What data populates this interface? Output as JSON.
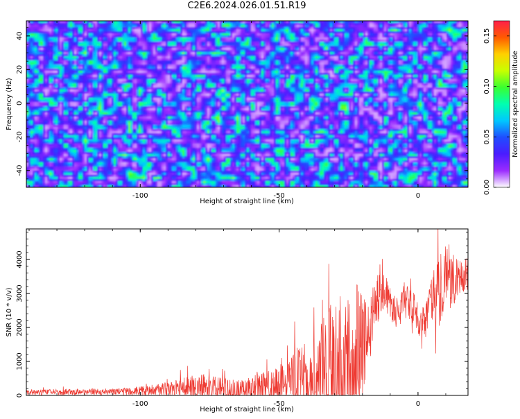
{
  "title": "C2E6.2024.026.01.51.R19",
  "chart_data": [
    {
      "type": "heatmap",
      "title": "C2E6.2024.026.01.51.R19",
      "xlabel": "Height of straight line (km)",
      "ylabel": "Frequency (Hz)",
      "xlim": [
        -141,
        18
      ],
      "ylim": [
        -50,
        49
      ],
      "x_ticks": [
        -100,
        -50,
        0
      ],
      "x_tick_labels": [
        "-100",
        "-50",
        "0"
      ],
      "y_ticks": [
        -40,
        -20,
        0,
        20,
        40
      ],
      "y_tick_labels": [
        "-40",
        "-20",
        "0",
        "20",
        "40"
      ],
      "colorbar": {
        "label": "Normalized spectral amplitude",
        "range": [
          0,
          0.165
        ],
        "ticks": [
          0.0,
          0.05,
          0.1,
          0.15
        ],
        "tick_labels": [
          "0.00",
          "0.05",
          "0.10",
          "0.15"
        ],
        "colormap": [
          "#ffffff",
          "#9b2cff",
          "#4a1cff",
          "#1f4dff",
          "#00c8ff",
          "#00ffb0",
          "#3aff30",
          "#c8ff00",
          "#ffd000",
          "#ff5a00",
          "#ff1f4a"
        ]
      },
      "description_values": "noise-like speckle field, amplitudes mostly 0.01-0.06 with scattered maxima near 0.09-0.12"
    },
    {
      "type": "line",
      "xlabel": "Height of straight line (km)",
      "ylabel": "SNR (10 * v/v)",
      "xlim": [
        -141,
        18
      ],
      "ylim": [
        0,
        4900
      ],
      "x_ticks": [
        -100,
        -50,
        0
      ],
      "x_tick_labels": [
        "-100",
        "-50",
        "0"
      ],
      "y_ticks": [
        0,
        1000,
        2000,
        3000,
        4000
      ],
      "y_tick_labels": [
        "0",
        "1000",
        "2000",
        "3000",
        "4000"
      ],
      "color": "#ee3a32",
      "envelope": {
        "x": [
          -141,
          -120,
          -105,
          -95,
          -88,
          -82,
          -78,
          -72,
          -68,
          -62,
          -58,
          -52,
          -48,
          -45,
          -42,
          -38,
          -35,
          -32,
          -29,
          -26,
          -23,
          -21,
          -19,
          -17,
          -15,
          -13,
          -11,
          -9,
          -7,
          -5,
          -3,
          -1,
          1,
          3,
          5,
          7,
          9,
          11,
          13,
          15,
          18
        ],
        "base": [
          100,
          100,
          110,
          140,
          180,
          200,
          190,
          170,
          150,
          170,
          200,
          260,
          360,
          460,
          500,
          550,
          650,
          700,
          650,
          750,
          950,
          1500,
          1700,
          2200,
          2800,
          3100,
          2900,
          2600,
          2400,
          2800,
          2700,
          2500,
          2000,
          2300,
          2800,
          3100,
          3300,
          3500,
          3300,
          3500,
          3700
        ],
        "amp": [
          80,
          90,
          110,
          180,
          260,
          420,
          450,
          380,
          330,
          380,
          420,
          500,
          620,
          900,
          1150,
          1350,
          1650,
          2000,
          2300,
          2500,
          2300,
          1900,
          1300,
          1000,
          800,
          600,
          500,
          500,
          500,
          550,
          500,
          450,
          450,
          600,
          800,
          1100,
          1200,
          1000,
          800,
          500,
          600
        ]
      }
    }
  ]
}
